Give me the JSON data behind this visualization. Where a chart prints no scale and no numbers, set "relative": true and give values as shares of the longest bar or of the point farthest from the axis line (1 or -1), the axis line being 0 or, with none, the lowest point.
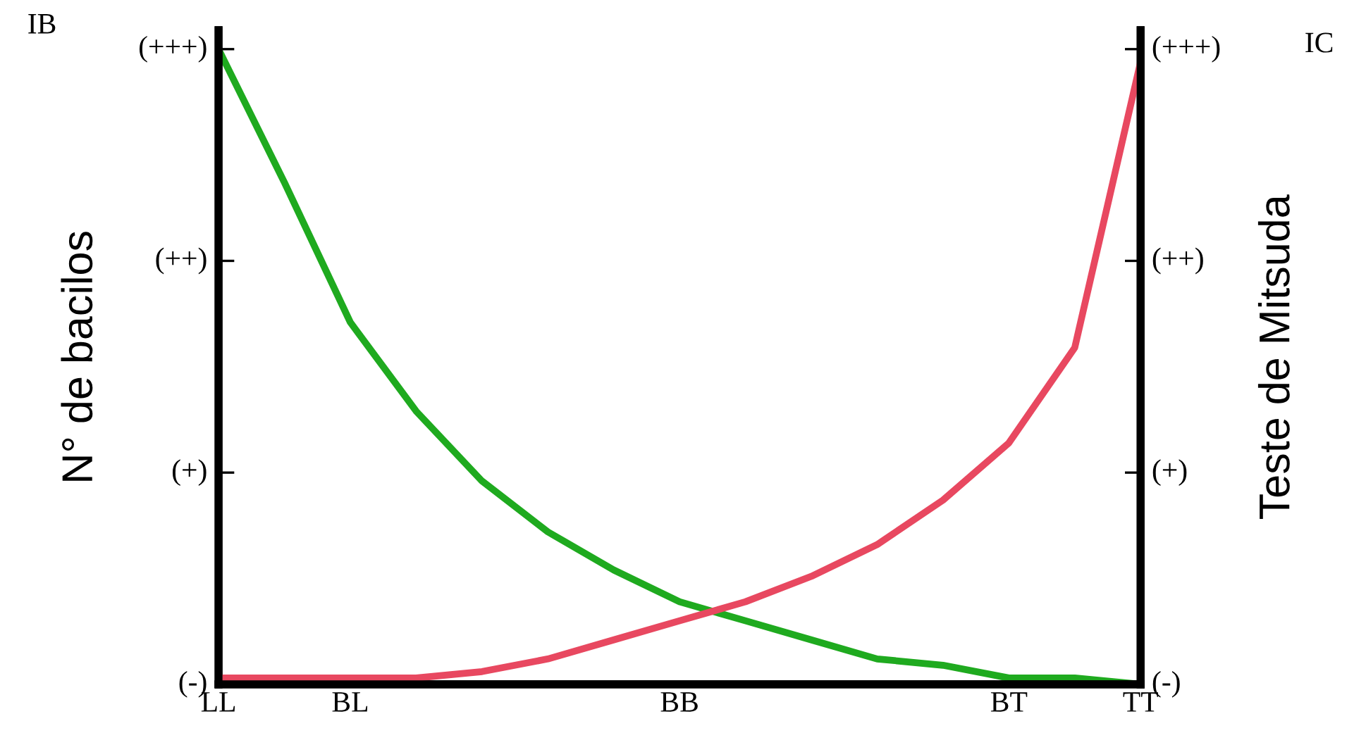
{
  "chart_data": {
    "type": "line",
    "relative": true,
    "ylabel": "N° de bacilos",
    "y2label": "Teste de Mitsuda",
    "annotations": [
      "IB",
      "IC",
      "(-)",
      "(+)",
      "(++)",
      "(+++)",
      "(-)",
      "(+)",
      "(++)",
      "(+++)"
    ],
    "categories": [
      "LL",
      null,
      "BL",
      null,
      null,
      null,
      null,
      "BB",
      null,
      null,
      null,
      null,
      "BT",
      null,
      "TT"
    ],
    "grid": false,
    "series": [
      {
        "color": "#1faa1f",
        "values": [
          1.0,
          0.79,
          0.57,
          0.43,
          0.32,
          0.24,
          0.18,
          0.13,
          0.1,
          0.07,
          0.04,
          0.03,
          0.01,
          0.01,
          0.0
        ]
      },
      {
        "color": "#e84860",
        "axis": "y2",
        "values": [
          0.01,
          0.01,
          0.01,
          0.01,
          0.02,
          0.04,
          0.07,
          0.1,
          0.13,
          0.17,
          0.22,
          0.29,
          0.38,
          0.53,
          0.98
        ]
      }
    ]
  }
}
